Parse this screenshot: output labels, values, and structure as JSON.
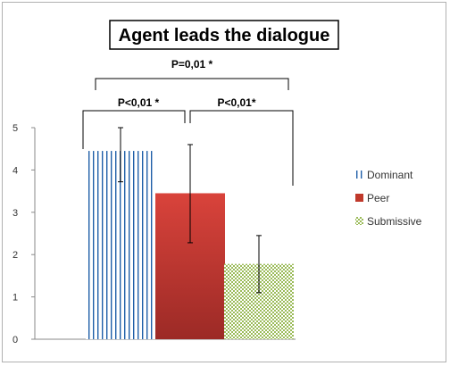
{
  "chart_data": {
    "type": "bar",
    "title": "Agent leads the dialogue",
    "categories": [
      "Dominant",
      "Peer",
      "Submissive"
    ],
    "values": [
      4.45,
      3.45,
      1.78
    ],
    "error": [
      {
        "low": 3.72,
        "high": 5.0
      },
      {
        "low": 2.28,
        "high": 4.6
      },
      {
        "low": 1.1,
        "high": 2.45
      }
    ],
    "ylim": [
      0,
      5
    ],
    "yticks": [
      "0",
      "1",
      "2",
      "3",
      "4",
      "5"
    ],
    "xlabel": "",
    "ylabel": "",
    "legend_position": "right",
    "grid": false,
    "significance": [
      {
        "label": "P<0,01 *",
        "from": 0,
        "to": 1
      },
      {
        "label": "P<0,01*",
        "from": 1,
        "to": 2
      },
      {
        "label": "P=0,01 *",
        "from": 0,
        "to": 2
      }
    ],
    "legend": [
      {
        "name": "Dominant",
        "pattern": "vertical-stripes"
      },
      {
        "name": "Peer",
        "pattern": "solid"
      },
      {
        "name": "Submissive",
        "pattern": "checker"
      }
    ],
    "colors": {
      "dominant_stripe": "#1f5fa8",
      "peer_top": "#d9433b",
      "peer_bottom": "#9c2a26",
      "submissive": "#9bbb59",
      "axis": "#888888",
      "error_bar": "#000000"
    }
  }
}
